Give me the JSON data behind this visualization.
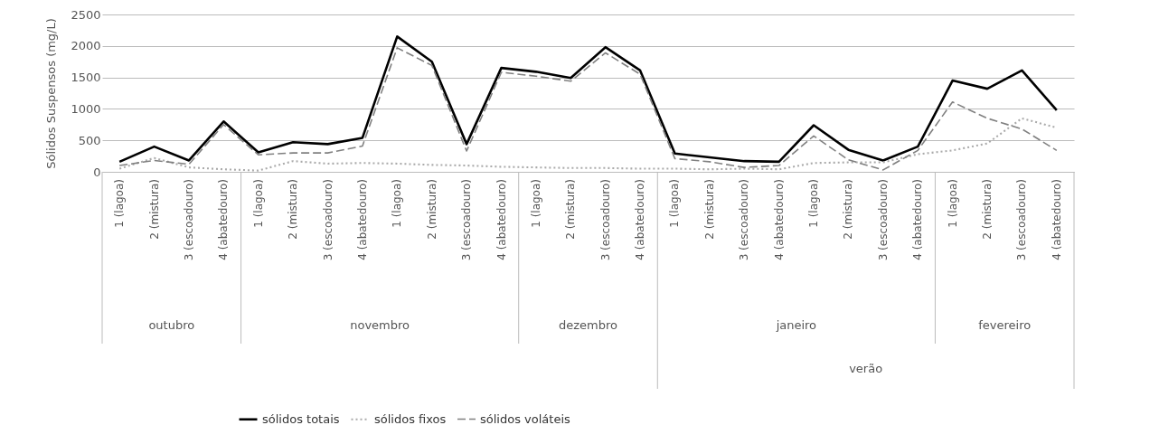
{
  "chart_data": {
    "type": "line",
    "ylabel": "Sólidos Suspensos (mg/L)",
    "categories": [
      "1  (lagoa)",
      "2 (mistura)",
      "3 (escoadouro)",
      "4 (abatedouro)",
      "1  (lagoa)",
      "2 (mistura)",
      "3 (escoadouro)",
      "4 (abatedouro)",
      "1  (lagoa)",
      "2 (mistura)",
      "3 (escoadouro)",
      "4 (abatedouro)",
      "1  (lagoa)",
      "2 (mistura)",
      "3 (escoadouro)",
      "4 (abatedouro)",
      "1  (lagoa)",
      "2 (mistura)",
      "3 (escoadouro)",
      "4 (abatedouro)",
      "1  (lagoa)",
      "2 (mistura)",
      "3 (escoadouro)",
      "4 (abatedouro)",
      "1  (lagoa)",
      "2 (mistura)",
      "3 (escoadouro)",
      "4 (abatedouro)"
    ],
    "series": [
      {
        "name": "sólidos totais",
        "color": "#000000",
        "line_style": "solid",
        "values": [
          160,
          400,
          180,
          800,
          310,
          470,
          440,
          540,
          2150,
          1750,
          440,
          1650,
          1590,
          1490,
          1980,
          1610,
          290,
          230,
          170,
          160,
          740,
          350,
          180,
          400,
          1450,
          1320,
          1610,
          980
        ]
      },
      {
        "name": "sólidos fixos",
        "color": "#aaaaaa",
        "line_style": "dotted",
        "values": [
          50,
          220,
          70,
          40,
          20,
          170,
          130,
          140,
          130,
          110,
          100,
          80,
          70,
          60,
          60,
          50,
          50,
          40,
          50,
          40,
          140,
          150,
          150,
          280,
          340,
          450,
          850,
          700
        ]
      },
      {
        "name": "sólidos voláteis",
        "color": "#808080",
        "line_style": "dashed",
        "values": [
          100,
          180,
          120,
          750,
          270,
          300,
          300,
          410,
          1970,
          1690,
          330,
          1580,
          1520,
          1440,
          1890,
          1550,
          210,
          160,
          70,
          100,
          570,
          190,
          30,
          340,
          1110,
          850,
          680,
          340
        ]
      }
    ],
    "ylim": [
      0,
      2500
    ],
    "yticks": [
      0,
      500,
      1000,
      1500,
      2000,
      2500
    ],
    "grid": "y",
    "legend": "bottom",
    "annotations": [
      "outubro",
      "novembro",
      "dezembro",
      "janeiro",
      "fevereiro",
      "verão"
    ]
  }
}
